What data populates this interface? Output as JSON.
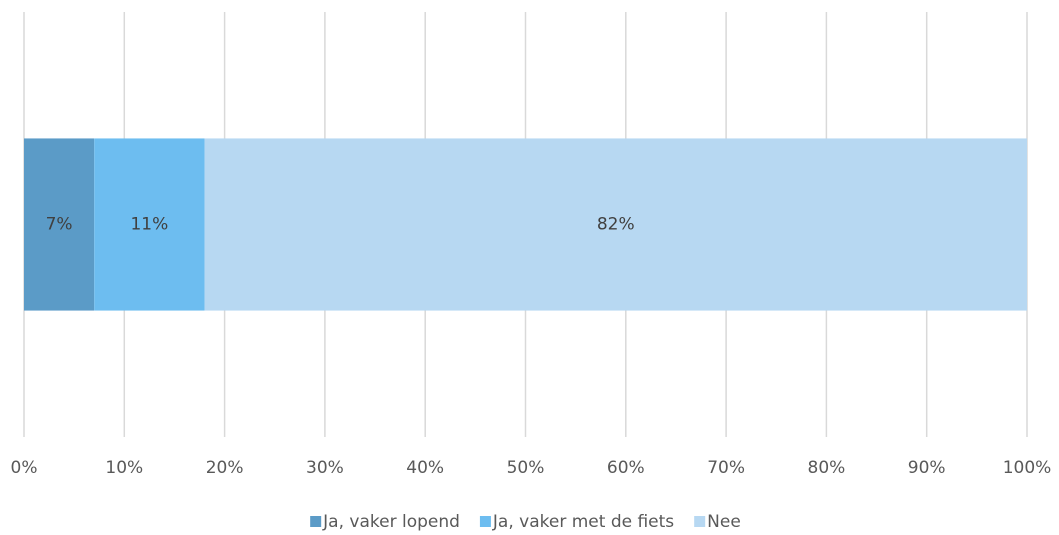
{
  "chart_data": {
    "type": "stacked-barh",
    "categories": [
      null
    ],
    "series": [
      {
        "name": "Ja, vaker lopend",
        "color": "#5b9bc7",
        "values": [
          7
        ],
        "value_labels": [
          "7%"
        ]
      },
      {
        "name": "Ja, vaker met de fiets",
        "color": "#6dbdf0",
        "values": [
          11
        ],
        "value_labels": [
          "11%"
        ]
      },
      {
        "name": "Nee",
        "color": "#b7d8f2",
        "values": [
          82
        ],
        "value_labels": [
          "82%"
        ]
      }
    ],
    "xlim": [
      0,
      100
    ],
    "xticks": [
      {
        "value": 0,
        "label": "0%"
      },
      {
        "value": 10,
        "label": "10%"
      },
      {
        "value": 20,
        "label": "20%"
      },
      {
        "value": 30,
        "label": "30%"
      },
      {
        "value": 40,
        "label": "40%"
      },
      {
        "value": 50,
        "label": "50%"
      },
      {
        "value": 60,
        "label": "60%"
      },
      {
        "value": 70,
        "label": "70%"
      },
      {
        "value": 80,
        "label": "80%"
      },
      {
        "value": 90,
        "label": "90%"
      },
      {
        "value": 100,
        "label": "100%"
      }
    ],
    "grid": true,
    "legend": "bottom"
  }
}
